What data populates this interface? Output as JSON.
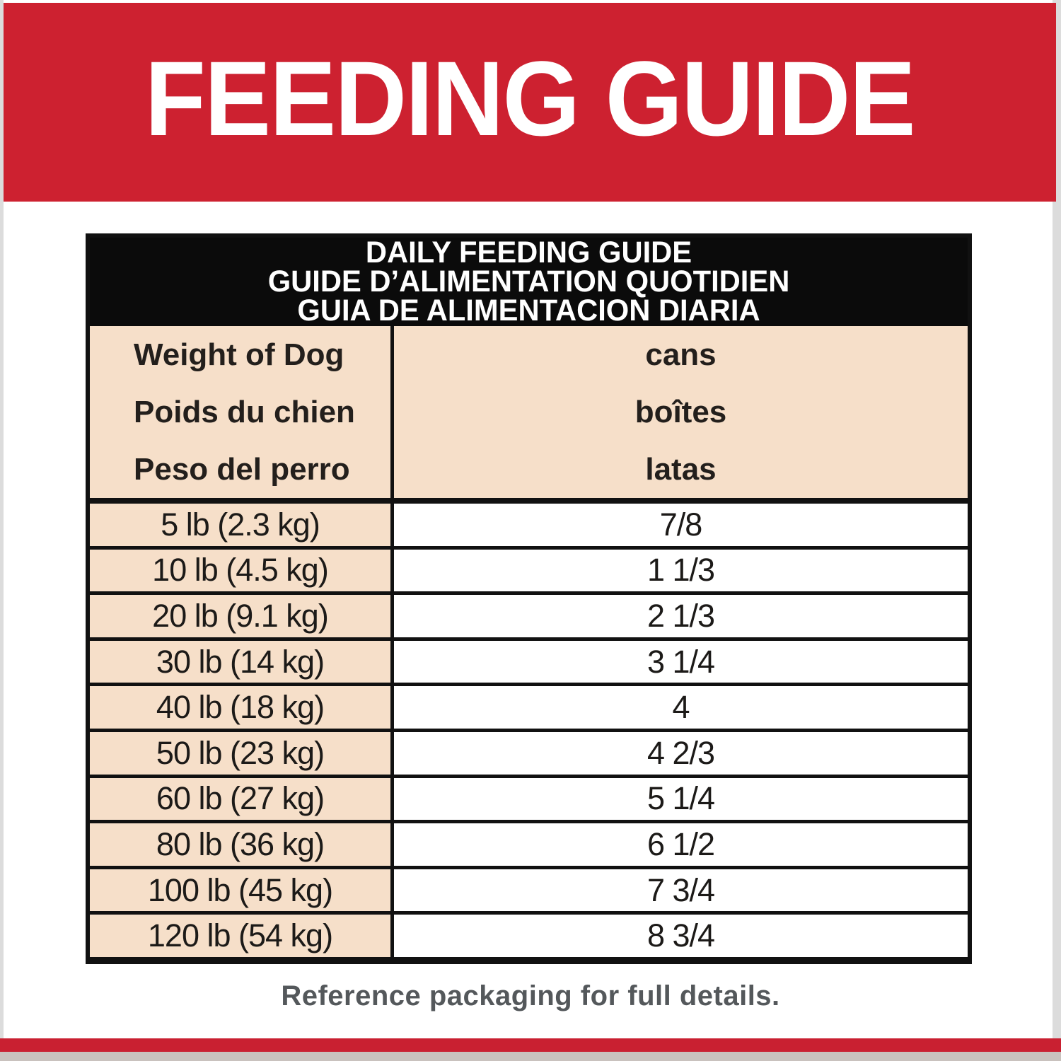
{
  "banner": {
    "title": "FEEDING GUIDE"
  },
  "table": {
    "title_lines": [
      "DAILY FEEDING GUIDE",
      "GUIDE D’ALIMENTATION QUOTIDIEN",
      "GUIA DE ALIMENTACION DIARIA"
    ],
    "header": {
      "weight_lines": [
        "Weight of Dog",
        "Poids du chien",
        "Peso del perro"
      ],
      "cans_lines": [
        "cans",
        "boîtes",
        "latas"
      ]
    },
    "rows": [
      {
        "weight": "5 lb (2.3 kg)",
        "cans": "7/8"
      },
      {
        "weight": "10 lb (4.5 kg)",
        "cans": "1 1/3"
      },
      {
        "weight": "20 lb (9.1 kg)",
        "cans": "2 1/3"
      },
      {
        "weight": "30 lb (14 kg)",
        "cans": "3 1/4"
      },
      {
        "weight": "40 lb (18 kg)",
        "cans": "4"
      },
      {
        "weight": "50 lb (23 kg)",
        "cans": "4 2/3"
      },
      {
        "weight": "60 lb (27 kg)",
        "cans": "5 1/4"
      },
      {
        "weight": "80 lb (36 kg)",
        "cans": "6 1/2"
      },
      {
        "weight": "100 lb (45 kg)",
        "cans": "7 3/4"
      },
      {
        "weight": "120 lb (54 kg)",
        "cans": "8 3/4"
      }
    ]
  },
  "footer": {
    "note": "Reference packaging for full details."
  },
  "colors": {
    "banner_red": "#cd2130",
    "bottom_bar_red": "#c92031",
    "table_band_bg": "#0b0b0b",
    "table_border": "#111111",
    "cell_tan": "#f6dfc9",
    "cell_white": "#ffffff",
    "footer_text": "#54585b",
    "edge_gray": "#dcdcdc",
    "bottom_gray": "#c9c2be"
  }
}
